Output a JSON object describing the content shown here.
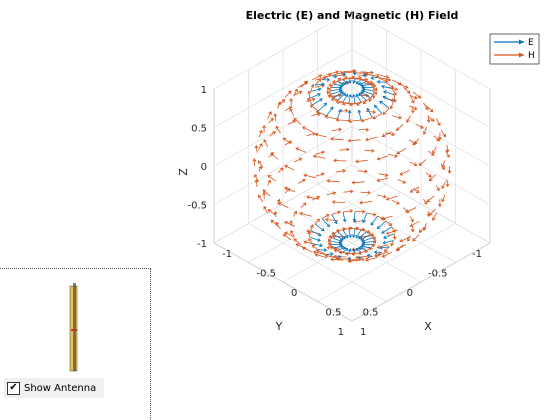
{
  "chart_data": {
    "type": "vector-field-3d",
    "title": "Electric (E) and Magnetic (H) Field",
    "xlabel": "X",
    "ylabel": "Y",
    "zlabel": "Z",
    "xlim": [
      -1,
      1
    ],
    "ylim": [
      -1,
      1
    ],
    "zlim": [
      -1,
      1
    ],
    "x_ticks": [
      "-1",
      "-0.5",
      "0",
      "0.5",
      "1"
    ],
    "y_ticks": [
      "-1",
      "-0.5",
      "0",
      "0.5",
      "1"
    ],
    "z_ticks": [
      "-1",
      "-0.5",
      "0",
      "0.5",
      "1"
    ],
    "surface": "unit sphere, radius 1",
    "grid": true,
    "legend_position": "top-right",
    "series": [
      {
        "name": "E",
        "color": "#0072BD",
        "direction": "meridional, converging toward the poles"
      },
      {
        "name": "H",
        "color": "#D95319",
        "direction": "azimuthal, tangent around the z-axis"
      }
    ]
  },
  "antenna_panel": {
    "checkbox_label": "Show Antenna",
    "checked": true,
    "check_glyph": "✔",
    "antenna_color": "#e8c35a",
    "feed_color": "#c0392b"
  }
}
